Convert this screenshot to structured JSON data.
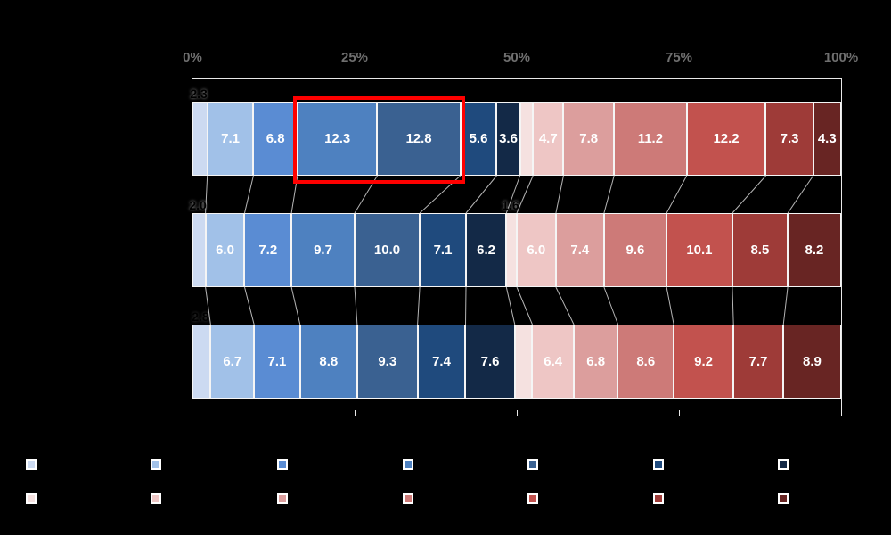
{
  "axis": {
    "position": "top",
    "label_color": "#6f6f6f",
    "tick_labels": [
      "0%",
      "25%",
      "50%",
      "75%",
      "100%"
    ]
  },
  "legend": {
    "rows": 2,
    "columns": 7,
    "row_palettes": [
      "blues",
      "reds"
    ],
    "labels_visible": false
  },
  "colors": {
    "background": "#000000",
    "plot_border": "#e8e8e8",
    "connector_line": "#b5b5b5",
    "inside_value_label": "#ffffff",
    "outside_value_label": "#000000",
    "highlight": "#ff0000"
  },
  "chart_data": {
    "type": "bar",
    "subtype": "100pct-stacked-horizontal-diverging",
    "orientation": "horizontal",
    "x_range": [
      0,
      100
    ],
    "x_tick_labels": [
      "0%",
      "25%",
      "50%",
      "75%",
      "100%"
    ],
    "gridlines": false,
    "legend_position": "bottom",
    "category_labels_visible": false,
    "palette": {
      "blues": [
        "#ccdaf1",
        "#a1c1e8",
        "#5a8cd3",
        "#4e81c0",
        "#3a6191",
        "#1f4a7d",
        "#132947"
      ],
      "reds": [
        "#f5e1e0",
        "#eec6c5",
        "#dc9e9d",
        "#cd7a78",
        "#c2524e",
        "#9e3b38",
        "#682523"
      ]
    },
    "bars": [
      {
        "segments": [
          {
            "value": 2.3,
            "label": "2.3",
            "side": "blues",
            "shade": 0,
            "label_placement": "outside"
          },
          {
            "value": 7.1,
            "label": "7.1",
            "side": "blues",
            "shade": 1,
            "label_placement": "inside"
          },
          {
            "value": 6.8,
            "label": "6.8",
            "side": "blues",
            "shade": 2,
            "label_placement": "inside"
          },
          {
            "value": 12.3,
            "label": "12.3",
            "side": "blues",
            "shade": 3,
            "label_placement": "inside"
          },
          {
            "value": 12.8,
            "label": "12.8",
            "side": "blues",
            "shade": 4,
            "label_placement": "inside"
          },
          {
            "value": 5.6,
            "label": "5.6",
            "side": "blues",
            "shade": 5,
            "label_placement": "inside"
          },
          {
            "value": 3.6,
            "label": "3.6",
            "side": "blues",
            "shade": 6,
            "label_placement": "inside"
          },
          {
            "value": 2.0,
            "label": "",
            "side": "reds",
            "shade": 0,
            "label_placement": "none"
          },
          {
            "value": 4.7,
            "label": "4.7",
            "side": "reds",
            "shade": 1,
            "label_placement": "inside"
          },
          {
            "value": 7.8,
            "label": "7.8",
            "side": "reds",
            "shade": 2,
            "label_placement": "inside"
          },
          {
            "value": 11.2,
            "label": "11.2",
            "side": "reds",
            "shade": 3,
            "label_placement": "inside"
          },
          {
            "value": 12.2,
            "label": "12.2",
            "side": "reds",
            "shade": 4,
            "label_placement": "inside"
          },
          {
            "value": 7.3,
            "label": "7.3",
            "side": "reds",
            "shade": 5,
            "label_placement": "inside"
          },
          {
            "value": 4.3,
            "label": "4.3",
            "side": "reds",
            "shade": 6,
            "label_placement": "inside"
          }
        ]
      },
      {
        "segments": [
          {
            "value": 2.0,
            "label": "2.0",
            "side": "blues",
            "shade": 0,
            "label_placement": "outside"
          },
          {
            "value": 6.0,
            "label": "6.0",
            "side": "blues",
            "shade": 1,
            "label_placement": "inside"
          },
          {
            "value": 7.2,
            "label": "7.2",
            "side": "blues",
            "shade": 2,
            "label_placement": "inside"
          },
          {
            "value": 9.7,
            "label": "9.7",
            "side": "blues",
            "shade": 3,
            "label_placement": "inside"
          },
          {
            "value": 10.0,
            "label": "10.0",
            "side": "blues",
            "shade": 4,
            "label_placement": "inside"
          },
          {
            "value": 7.1,
            "label": "7.1",
            "side": "blues",
            "shade": 5,
            "label_placement": "inside"
          },
          {
            "value": 6.2,
            "label": "6.2",
            "side": "blues",
            "shade": 6,
            "label_placement": "inside"
          },
          {
            "value": 1.6,
            "label": "1.6",
            "side": "reds",
            "shade": 0,
            "label_placement": "outside"
          },
          {
            "value": 6.0,
            "label": "6.0",
            "side": "reds",
            "shade": 1,
            "label_placement": "inside"
          },
          {
            "value": 7.4,
            "label": "7.4",
            "side": "reds",
            "shade": 2,
            "label_placement": "inside"
          },
          {
            "value": 9.6,
            "label": "9.6",
            "side": "reds",
            "shade": 3,
            "label_placement": "inside"
          },
          {
            "value": 10.1,
            "label": "10.1",
            "side": "reds",
            "shade": 4,
            "label_placement": "inside"
          },
          {
            "value": 8.5,
            "label": "8.5",
            "side": "reds",
            "shade": 5,
            "label_placement": "inside"
          },
          {
            "value": 8.2,
            "label": "8.2",
            "side": "reds",
            "shade": 6,
            "label_placement": "inside"
          }
        ]
      },
      {
        "segments": [
          {
            "value": 2.8,
            "label": "2.8",
            "side": "blues",
            "shade": 0,
            "label_placement": "outside-faint"
          },
          {
            "value": 6.7,
            "label": "6.7",
            "side": "blues",
            "shade": 1,
            "label_placement": "inside"
          },
          {
            "value": 7.1,
            "label": "7.1",
            "side": "blues",
            "shade": 2,
            "label_placement": "inside"
          },
          {
            "value": 8.8,
            "label": "8.8",
            "side": "blues",
            "shade": 3,
            "label_placement": "inside"
          },
          {
            "value": 9.3,
            "label": "9.3",
            "side": "blues",
            "shade": 4,
            "label_placement": "inside"
          },
          {
            "value": 7.4,
            "label": "7.4",
            "side": "blues",
            "shade": 5,
            "label_placement": "inside"
          },
          {
            "value": 7.6,
            "label": "7.6",
            "side": "blues",
            "shade": 6,
            "label_placement": "inside"
          },
          {
            "value": 2.7,
            "label": "",
            "side": "reds",
            "shade": 0,
            "label_placement": "none"
          },
          {
            "value": 6.4,
            "label": "6.4",
            "side": "reds",
            "shade": 1,
            "label_placement": "inside"
          },
          {
            "value": 6.8,
            "label": "6.8",
            "side": "reds",
            "shade": 2,
            "label_placement": "inside"
          },
          {
            "value": 8.6,
            "label": "8.6",
            "side": "reds",
            "shade": 3,
            "label_placement": "inside"
          },
          {
            "value": 9.2,
            "label": "9.2",
            "side": "reds",
            "shade": 4,
            "label_placement": "inside"
          },
          {
            "value": 7.7,
            "label": "7.7",
            "side": "reds",
            "shade": 5,
            "label_placement": "inside"
          },
          {
            "value": 8.9,
            "label": "8.9",
            "side": "reds",
            "shade": 6,
            "label_placement": "inside"
          }
        ]
      }
    ],
    "highlight": {
      "bar": 0,
      "from_segment": 3,
      "to_segment": 4,
      "color": "#ff0000"
    }
  }
}
